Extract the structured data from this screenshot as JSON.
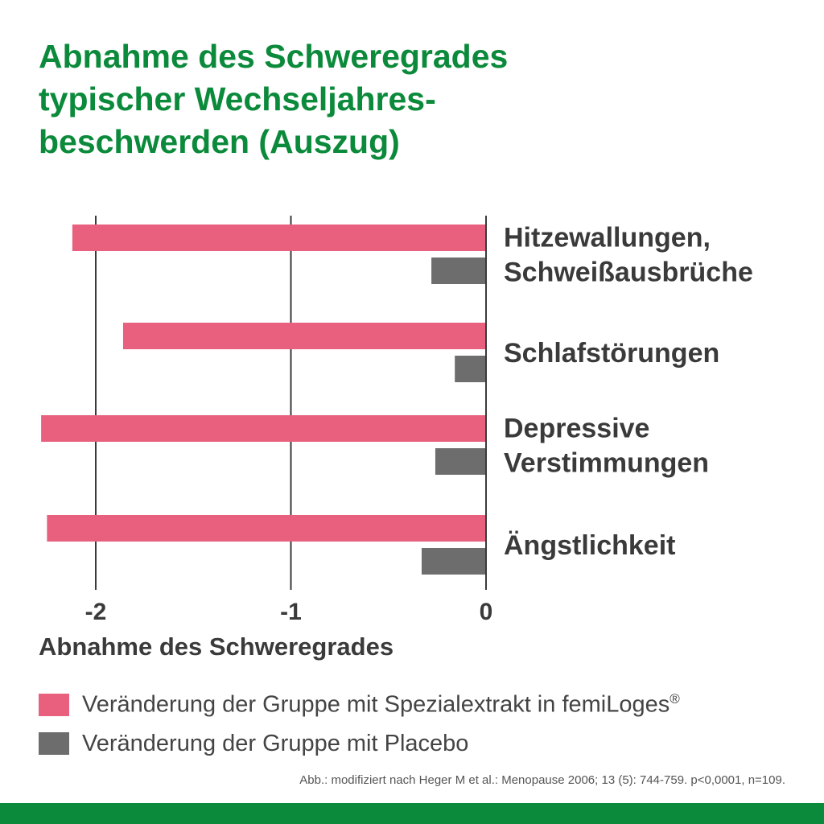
{
  "title_lines": [
    "Abnahme des Schweregrades",
    "typischer Wechseljahres-",
    "beschwerden (Auszug)"
  ],
  "chart_data": {
    "type": "bar",
    "orientation": "horizontal",
    "title": "Abnahme des Schweregrades typischer Wechseljahresbeschwerden (Auszug)",
    "xlabel": "Abnahme des Schweregrades",
    "xlim": [
      -2.5,
      0
    ],
    "xticks": [
      -2,
      -1,
      0
    ],
    "grid": true,
    "categories": [
      [
        "Hitzewallungen,",
        "Schweißausbrüche"
      ],
      [
        "Schlafstörungen"
      ],
      [
        "Depressive",
        "Verstimmungen"
      ],
      [
        "Ängstlichkeit"
      ]
    ],
    "series": [
      {
        "name": "Veränderung der Gruppe mit Spezialextrakt in femiLoges®",
        "color": "#e8607e",
        "values": [
          -2.12,
          -1.86,
          -2.28,
          -2.25
        ]
      },
      {
        "name": "Veränderung der Gruppe mit Placebo",
        "color": "#6d6d6d",
        "values": [
          -0.28,
          -0.16,
          -0.26,
          -0.33
        ]
      }
    ],
    "legend_position": "bottom"
  },
  "legend": {
    "items": [
      {
        "text": "Veränderung der Gruppe mit Spezialextrakt in femiLoges",
        "sup": "®",
        "color": "#e8607e"
      },
      {
        "text": "Veränderung der Gruppe mit Placebo",
        "sup": "",
        "color": "#6d6d6d"
      }
    ]
  },
  "source": "Abb.: modifiziert nach Heger M et al.: Menopause 2006; 13 (5): 744-759. p<0,0001, n=109.",
  "colors": {
    "brand_green": "#0a8a3a",
    "text_dark": "#3a3a3a",
    "grid": "#3a3a3a"
  }
}
